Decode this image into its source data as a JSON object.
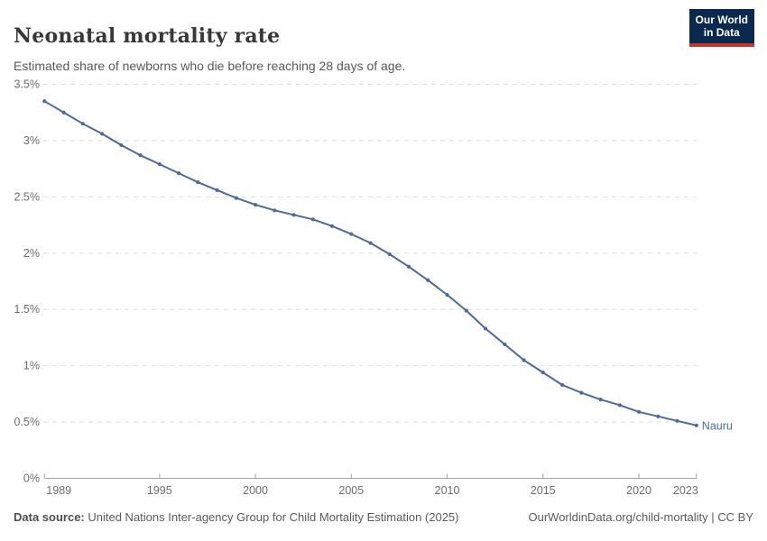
{
  "header": {
    "title": "Neonatal mortality rate",
    "subtitle": "Estimated share of newborns who die before reaching 28 days of age.",
    "logo": {
      "line1": "Our World",
      "line2": "in Data"
    }
  },
  "footer": {
    "source_label": "Data source:",
    "source_text": " United Nations Inter-agency Group for Child Mortality Estimation (2025)",
    "attribution": "OurWorldinData.org/child-mortality | CC BY"
  },
  "colors": {
    "line": "#4c6a9f",
    "marker": "#4c6a9f",
    "entity_label": "#4c6a9f",
    "grid": "#dedede",
    "axis": "#a1a1a1",
    "tick_text": "#6d6d6d",
    "logo_bg": "#0a2a4d",
    "logo_bar": "#cf312b"
  },
  "chart_data": {
    "type": "line",
    "title": "Neonatal mortality rate",
    "entity": "Nauru",
    "unit": "%",
    "grid": true,
    "legend_position": "end-of-line-label",
    "x": [
      1989,
      1990,
      1991,
      1992,
      1993,
      1994,
      1995,
      1996,
      1997,
      1998,
      1999,
      2000,
      2001,
      2002,
      2003,
      2004,
      2005,
      2006,
      2007,
      2008,
      2009,
      2010,
      2011,
      2012,
      2013,
      2014,
      2015,
      2016,
      2017,
      2018,
      2019,
      2020,
      2021,
      2022,
      2023
    ],
    "values": [
      3.35,
      3.25,
      3.15,
      3.06,
      2.96,
      2.87,
      2.79,
      2.71,
      2.63,
      2.56,
      2.49,
      2.43,
      2.38,
      2.34,
      2.3,
      2.24,
      2.17,
      2.09,
      1.99,
      1.88,
      1.76,
      1.63,
      1.49,
      1.33,
      1.19,
      1.05,
      0.94,
      0.83,
      0.76,
      0.7,
      0.65,
      0.59,
      0.55,
      0.51,
      0.47
    ],
    "ylim": [
      0,
      3.5
    ],
    "y_ticks": [
      0,
      0.5,
      1,
      1.5,
      2,
      2.5,
      3,
      3.5
    ],
    "y_tick_labels": [
      "0%",
      "0.5%",
      "1%",
      "1.5%",
      "2%",
      "2.5%",
      "3%",
      "3.5%"
    ],
    "x_ticks": [
      1989,
      1995,
      2000,
      2005,
      2010,
      2015,
      2020,
      2023
    ]
  }
}
